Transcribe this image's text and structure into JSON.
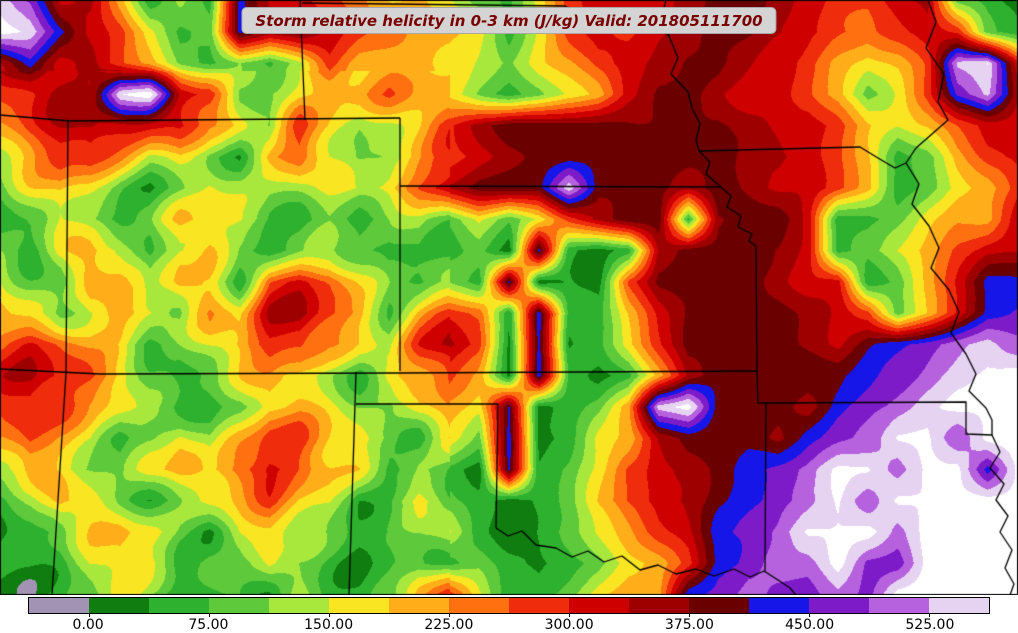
{
  "title_bar": {
    "text": "Storm relative helicity in 0-3 km (J/kg) Valid: 201805111700",
    "text_color": "#7a0000",
    "background": "#d4d4d4"
  },
  "chart_data": {
    "type": "heatmap",
    "title": "Storm relative helicity in 0-3 km (J/kg) Valid: 201805111700",
    "variable": "Storm relative helicity in 0-3 km",
    "units": "J/kg",
    "valid": "201805111700",
    "legend_position": "bottom",
    "colorbar": {
      "levels": [
        -37.5,
        0,
        37.5,
        75,
        112.5,
        150,
        187.5,
        225,
        262.5,
        300,
        337.5,
        375,
        412.5,
        450,
        487.5,
        525,
        562.5
      ],
      "colors": [
        "#a292b4",
        "#0f7d0f",
        "#2eb12e",
        "#5fc93c",
        "#a8e83c",
        "#f9e521",
        "#ffae1a",
        "#ff7011",
        "#ef2c0c",
        "#cf0000",
        "#9e0000",
        "#6a0000",
        "#1616e8",
        "#7d1bc9",
        "#b661de",
        "#e6d3f2"
      ],
      "over_color": "#ffffff",
      "tick_values": [
        0,
        75,
        150,
        225,
        300,
        375,
        450,
        525
      ],
      "tick_labels": [
        "0.00",
        "75.00",
        "150.00",
        "225.00",
        "300.00",
        "375.00",
        "450.00",
        "525.00"
      ]
    },
    "field": {
      "cols": 35,
      "rows": 20,
      "values": [
        [
          545,
          468,
          320,
          355,
          205,
          55,
          130,
          55,
          430,
          320,
          320,
          280,
          245,
          205,
          205,
          165,
          95,
          55,
          165,
          280,
          320,
          320,
          320,
          355,
          395,
          395,
          355,
          320,
          280,
          280,
          320,
          355,
          95,
          55,
          20
        ],
        [
          580,
          545,
          430,
          320,
          280,
          165,
          55,
          95,
          430,
          355,
          395,
          320,
          280,
          245,
          205,
          205,
          165,
          55,
          165,
          280,
          320,
          280,
          320,
          355,
          395,
          395,
          355,
          320,
          280,
          245,
          280,
          320,
          280,
          95,
          55
        ],
        [
          320,
          430,
          320,
          355,
          280,
          205,
          95,
          55,
          95,
          55,
          130,
          280,
          205,
          205,
          205,
          165,
          130,
          95,
          165,
          205,
          280,
          320,
          355,
          395,
          395,
          355,
          320,
          280,
          205,
          165,
          205,
          280,
          545,
          580,
          320
        ],
        [
          280,
          320,
          355,
          320,
          545,
          545,
          320,
          280,
          95,
          130,
          165,
          205,
          205,
          245,
          205,
          165,
          95,
          55,
          95,
          165,
          205,
          320,
          395,
          395,
          355,
          320,
          320,
          280,
          205,
          95,
          165,
          280,
          468,
          545,
          355
        ],
        [
          205,
          280,
          320,
          355,
          320,
          320,
          320,
          205,
          165,
          95,
          280,
          205,
          130,
          165,
          205,
          280,
          355,
          395,
          395,
          395,
          395,
          395,
          395,
          395,
          395,
          355,
          320,
          320,
          280,
          205,
          165,
          205,
          280,
          320,
          320
        ],
        [
          165,
          205,
          280,
          280,
          205,
          130,
          165,
          95,
          55,
          205,
          280,
          165,
          95,
          130,
          205,
          280,
          320,
          355,
          395,
          395,
          395,
          395,
          395,
          395,
          395,
          355,
          355,
          320,
          280,
          205,
          55,
          95,
          205,
          280,
          320
        ],
        [
          95,
          165,
          205,
          165,
          95,
          55,
          95,
          165,
          130,
          95,
          130,
          165,
          165,
          205,
          280,
          355,
          395,
          395,
          395,
          545,
          395,
          395,
          395,
          355,
          395,
          355,
          320,
          320,
          280,
          205,
          55,
          95,
          165,
          205,
          280
        ],
        [
          55,
          95,
          165,
          95,
          55,
          95,
          205,
          205,
          165,
          95,
          55,
          95,
          55,
          95,
          130,
          95,
          165,
          95,
          165,
          280,
          355,
          395,
          395,
          55,
          355,
          395,
          395,
          320,
          55,
          55,
          95,
          165,
          205,
          205,
          320
        ],
        [
          95,
          55,
          165,
          205,
          165,
          55,
          165,
          205,
          95,
          55,
          95,
          130,
          95,
          55,
          95,
          55,
          95,
          20,
          430,
          55,
          20,
          55,
          355,
          395,
          395,
          395,
          355,
          320,
          55,
          95,
          165,
          205,
          280,
          320,
          320
        ],
        [
          165,
          95,
          55,
          205,
          165,
          95,
          205,
          165,
          55,
          280,
          320,
          280,
          165,
          95,
          55,
          95,
          55,
          430,
          20,
          55,
          20,
          280,
          395,
          395,
          395,
          395,
          355,
          320,
          320,
          55,
          95,
          205,
          320,
          430,
          430
        ],
        [
          205,
          165,
          95,
          165,
          205,
          165,
          95,
          205,
          165,
          320,
          355,
          280,
          205,
          95,
          205,
          280,
          245,
          20,
          430,
          55,
          55,
          205,
          320,
          395,
          395,
          395,
          395,
          355,
          320,
          280,
          95,
          205,
          320,
          430,
          468
        ],
        [
          280,
          320,
          280,
          205,
          165,
          55,
          95,
          165,
          205,
          280,
          280,
          205,
          165,
          130,
          280,
          355,
          280,
          20,
          430,
          20,
          55,
          165,
          280,
          395,
          395,
          395,
          395,
          355,
          320,
          395,
          430,
          468,
          505,
          545,
          505
        ],
        [
          320,
          355,
          320,
          280,
          205,
          95,
          55,
          95,
          165,
          205,
          165,
          95,
          55,
          165,
          205,
          280,
          205,
          20,
          430,
          55,
          20,
          55,
          205,
          355,
          395,
          395,
          395,
          395,
          395,
          430,
          468,
          505,
          545,
          580,
          580
        ],
        [
          280,
          320,
          280,
          205,
          165,
          95,
          55,
          55,
          95,
          205,
          205,
          165,
          95,
          55,
          165,
          205,
          165,
          430,
          20,
          55,
          95,
          205,
          545,
          580,
          395,
          395,
          395,
          355,
          430,
          468,
          505,
          545,
          580,
          580,
          580
        ],
        [
          205,
          280,
          205,
          165,
          55,
          95,
          165,
          95,
          205,
          280,
          280,
          205,
          165,
          95,
          55,
          165,
          95,
          430,
          20,
          55,
          165,
          205,
          355,
          395,
          395,
          395,
          355,
          430,
          468,
          505,
          580,
          580,
          505,
          580,
          580
        ],
        [
          165,
          205,
          165,
          95,
          55,
          165,
          205,
          165,
          280,
          320,
          280,
          205,
          165,
          55,
          95,
          55,
          20,
          430,
          55,
          95,
          165,
          280,
          320,
          355,
          395,
          430,
          468,
          505,
          580,
          580,
          505,
          580,
          580,
          430,
          580
        ],
        [
          55,
          95,
          205,
          165,
          95,
          55,
          95,
          165,
          205,
          280,
          205,
          165,
          55,
          95,
          165,
          95,
          55,
          20,
          55,
          95,
          205,
          280,
          320,
          355,
          395,
          430,
          468,
          505,
          580,
          505,
          580,
          580,
          580,
          580,
          580
        ],
        [
          20,
          55,
          95,
          165,
          205,
          165,
          95,
          55,
          165,
          205,
          165,
          95,
          55,
          55,
          95,
          165,
          55,
          20,
          55,
          95,
          165,
          205,
          280,
          320,
          430,
          468,
          505,
          580,
          580,
          580,
          505,
          580,
          580,
          580,
          580
        ],
        [
          20,
          55,
          55,
          165,
          205,
          165,
          55,
          95,
          55,
          165,
          95,
          55,
          20,
          55,
          95,
          55,
          95,
          55,
          20,
          55,
          95,
          165,
          205,
          280,
          430,
          468,
          505,
          505,
          580,
          468,
          468,
          580,
          580,
          580,
          580
        ],
        [
          55,
          20,
          55,
          95,
          165,
          95,
          55,
          55,
          95,
          55,
          130,
          55,
          20,
          55,
          205,
          280,
          165,
          55,
          55,
          95,
          165,
          205,
          205,
          430,
          468,
          505,
          468,
          468,
          505,
          468,
          580,
          580,
          580,
          580,
          580
        ]
      ]
    },
    "borders": [
      [
        [
          0,
          115
        ],
        [
          70,
          121
        ],
        [
          400,
          118
        ]
      ],
      [
        [
          305,
          120
        ],
        [
          300,
          0
        ]
      ],
      [
        [
          302,
          3
        ],
        [
          565,
          6
        ],
        [
          578,
          14
        ],
        [
          592,
          8
        ],
        [
          606,
          20
        ],
        [
          620,
          14
        ],
        [
          634,
          26
        ],
        [
          648,
          20
        ],
        [
          662,
          30
        ],
        [
          669,
          36
        ],
        [
          678,
          58
        ],
        [
          671,
          74
        ],
        [
          688,
          92
        ],
        [
          692,
          108
        ],
        [
          700,
          124
        ],
        [
          696,
          140
        ],
        [
          699,
          151
        ],
        [
          710,
          162
        ],
        [
          706,
          174
        ],
        [
          721,
          187
        ]
      ],
      [
        [
          400,
          186
        ],
        [
          721,
          187
        ]
      ],
      [
        [
          400,
          118
        ],
        [
          400,
          371
        ]
      ],
      [
        [
          0,
          369
        ],
        [
          100,
          374
        ],
        [
          400,
          373
        ],
        [
          757,
          371
        ]
      ],
      [
        [
          68,
          121
        ],
        [
          66,
          373
        ],
        [
          52,
          595
        ]
      ],
      [
        [
          356,
          372
        ],
        [
          349,
          595
        ]
      ],
      [
        [
          356,
          404
        ],
        [
          498,
          404
        ]
      ],
      [
        [
          498,
          404
        ],
        [
          496,
          528
        ]
      ],
      [
        [
          496,
          528
        ],
        [
          508,
          536
        ],
        [
          522,
          531
        ],
        [
          536,
          545
        ],
        [
          556,
          548
        ],
        [
          572,
          557
        ],
        [
          588,
          551
        ],
        [
          604,
          562
        ],
        [
          622,
          556
        ],
        [
          640,
          570
        ],
        [
          658,
          565
        ],
        [
          676,
          574
        ],
        [
          696,
          569
        ],
        [
          714,
          576
        ],
        [
          734,
          569
        ],
        [
          750,
          577
        ],
        [
          764,
          571
        ]
      ],
      [
        [
          764,
          571
        ],
        [
          778,
          580
        ],
        [
          790,
          588
        ],
        [
          796,
          595
        ]
      ],
      [
        [
          757,
          371
        ],
        [
          758,
          403
        ],
        [
          766,
          403
        ],
        [
          765,
          571
        ]
      ],
      [
        [
          721,
          187
        ],
        [
          731,
          196
        ],
        [
          727,
          207
        ],
        [
          741,
          216
        ],
        [
          738,
          227
        ],
        [
          752,
          234
        ],
        [
          749,
          241
        ],
        [
          756,
          246
        ],
        [
          757,
          371
        ]
      ],
      [
        [
          766,
          403
        ],
        [
          966,
          402
        ],
        [
          966,
          434
        ],
        [
          992,
          435
        ]
      ],
      [
        [
          699,
          151
        ],
        [
          860,
          147
        ],
        [
          878,
          158
        ],
        [
          895,
          168
        ],
        [
          906,
          163
        ]
      ],
      [
        [
          928,
          0
        ],
        [
          936,
          22
        ],
        [
          926,
          48
        ],
        [
          944,
          74
        ],
        [
          938,
          102
        ],
        [
          948,
          120
        ],
        [
          916,
          148
        ],
        [
          906,
          163
        ],
        [
          919,
          184
        ],
        [
          912,
          204
        ],
        [
          929,
          226
        ],
        [
          939,
          248
        ],
        [
          931,
          268
        ],
        [
          949,
          290
        ],
        [
          959,
          312
        ],
        [
          951,
          333
        ],
        [
          966,
          354
        ],
        [
          976,
          374
        ],
        [
          969,
          391
        ],
        [
          986,
          408
        ],
        [
          992,
          420
        ],
        [
          992,
          435
        ]
      ],
      [
        [
          992,
          435
        ],
        [
          1000,
          452
        ],
        [
          990,
          468
        ],
        [
          1004,
          484
        ],
        [
          996,
          500
        ],
        [
          1008,
          516
        ],
        [
          1000,
          532
        ],
        [
          1012,
          550
        ],
        [
          1005,
          568
        ],
        [
          1014,
          584
        ],
        [
          1010,
          595
        ]
      ],
      [
        [
          669,
          36
        ],
        [
          662,
          16
        ],
        [
          666,
          0
        ]
      ]
    ]
  }
}
